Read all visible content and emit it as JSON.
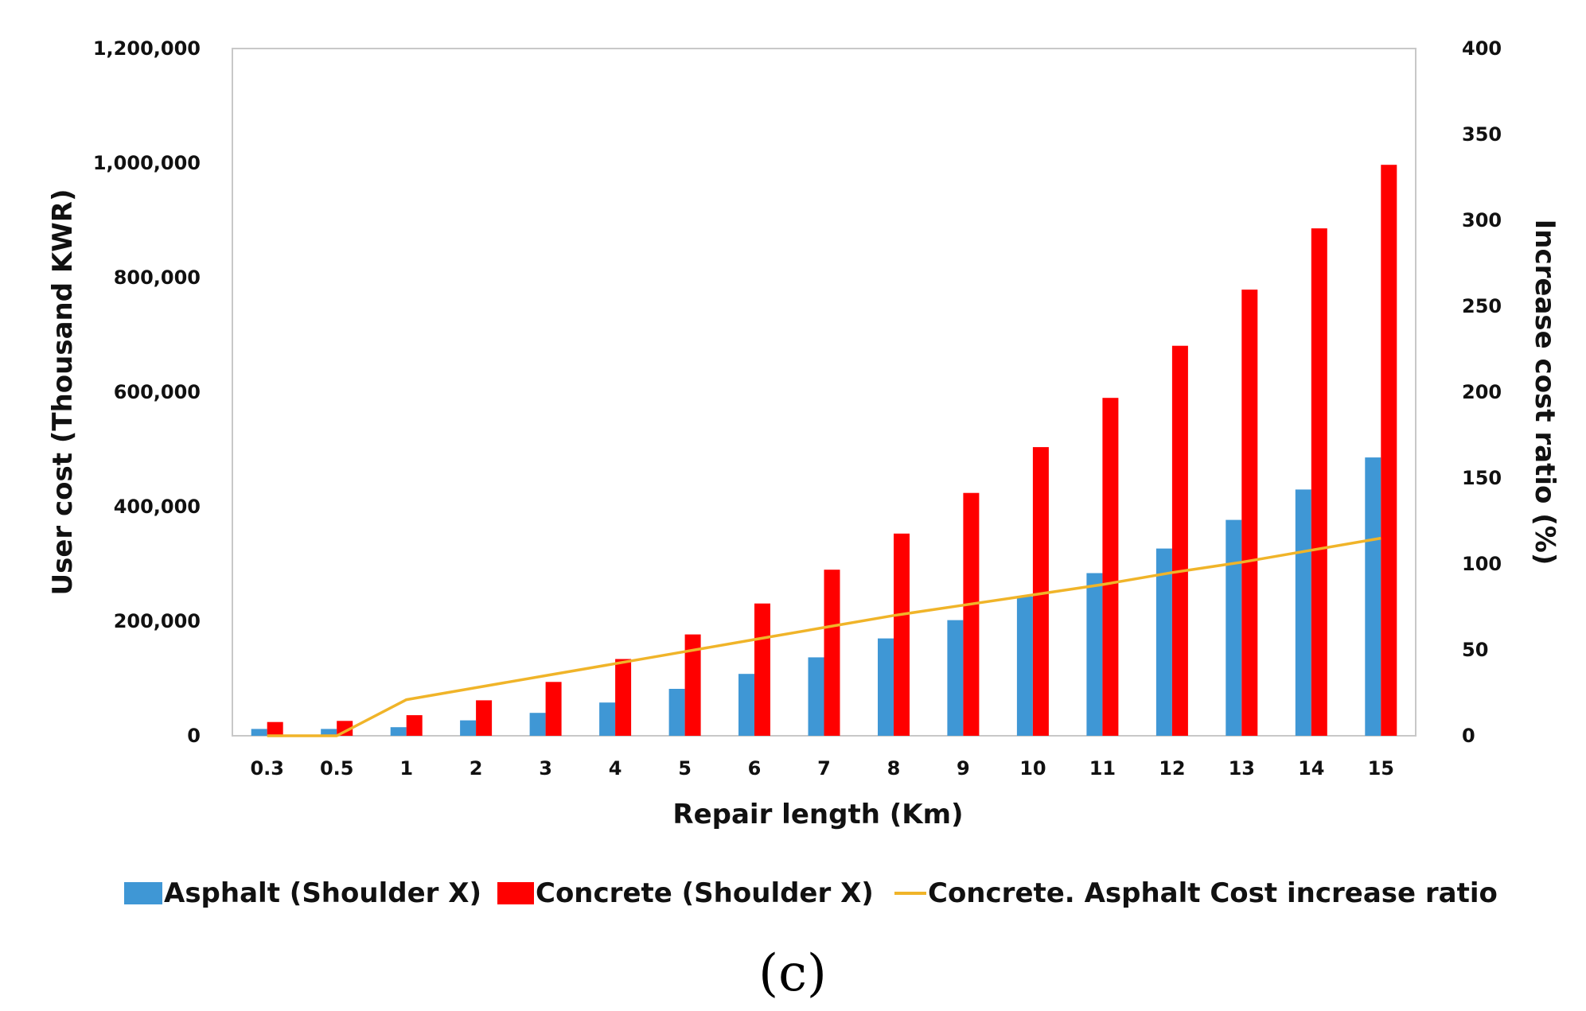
{
  "chart_data": {
    "type": "bar",
    "title": "",
    "xlabel": "Repair length (Km)",
    "ylabel": "User cost (Thousand KWR)",
    "y2label": "Increase cost ratio (%)",
    "categories": [
      "0.3",
      "0.5",
      "1",
      "2",
      "3",
      "4",
      "5",
      "6",
      "7",
      "8",
      "9",
      "10",
      "11",
      "12",
      "13",
      "14",
      "15"
    ],
    "ylim": [
      0,
      1200000
    ],
    "y2lim": [
      0,
      400
    ],
    "yticks": [
      0,
      200000,
      400000,
      600000,
      800000,
      1000000,
      1200000
    ],
    "ytick_labels": [
      "0",
      "200,000",
      "400,000",
      "600,000",
      "800,000",
      "1,000,000",
      "1,200,000"
    ],
    "y2ticks": [
      0,
      50,
      100,
      150,
      200,
      250,
      300,
      350,
      400
    ],
    "y2tick_labels": [
      "0",
      "50",
      "100",
      "150",
      "200",
      "250",
      "300",
      "350",
      "400"
    ],
    "series": [
      {
        "name": "Asphalt (Shoulder X)",
        "kind": "bar",
        "axis": "left",
        "color": "#3f97d5",
        "values": [
          12000,
          12000,
          15000,
          27000,
          40000,
          58000,
          82000,
          108000,
          137000,
          170000,
          202000,
          243000,
          284000,
          327000,
          377000,
          430000,
          486000
        ]
      },
      {
        "name": "Concrete (Shoulder X)",
        "kind": "bar",
        "axis": "left",
        "color": "#ff0000",
        "values": [
          24000,
          26000,
          36000,
          62000,
          94000,
          134000,
          177000,
          231000,
          290000,
          353000,
          424000,
          504000,
          590000,
          681000,
          779000,
          886000,
          997000
        ]
      },
      {
        "name": "Concrete. Asphalt Cost increase ratio",
        "kind": "line",
        "axis": "right",
        "color": "#f0b429",
        "values": [
          0,
          0,
          21,
          28,
          35,
          42,
          49,
          56,
          63,
          70,
          76,
          82,
          88,
          95,
          101,
          108,
          115
        ]
      }
    ],
    "legend_position": "bottom",
    "grid": false
  },
  "panel_label": "(c)"
}
